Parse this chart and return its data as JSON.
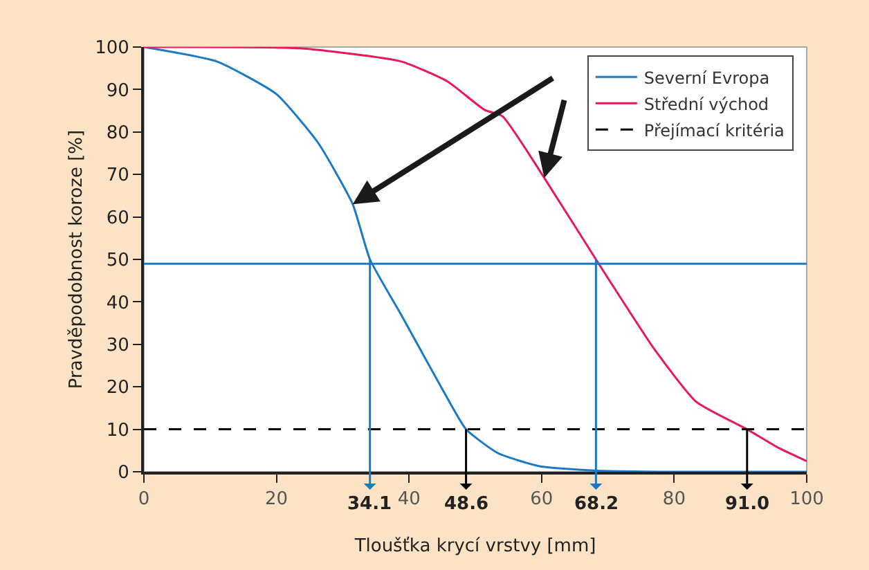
{
  "chart_data": {
    "type": "line",
    "xlabel": "Tloušťka krycí vrstvy [mm]",
    "ylabel": "Pravděpodobnost koroze [%]",
    "xlim": [
      0,
      100
    ],
    "xticks": [
      0,
      20,
      40,
      60,
      80,
      100
    ],
    "ylim": [
      0,
      100
    ],
    "yticks": [
      0,
      10,
      20,
      30,
      40,
      50,
      60,
      70,
      80,
      90,
      100
    ],
    "grid": false,
    "legend": "top right",
    "marker": "none",
    "series": [
      {
        "name": "Severní Evropa",
        "color": "#1a7ac8",
        "line_style": "solid",
        "x": [
          0,
          11,
          20,
          26.3,
          31.5,
          34.1,
          38.8,
          45,
          48.6,
          53.4,
          59.7,
          68,
          80,
          100
        ],
        "values": [
          100,
          96.6,
          88.9,
          77.4,
          63,
          50,
          37,
          19.5,
          10,
          4.4,
          1.3,
          0.3,
          0,
          0
        ]
      },
      {
        "name": "Střední východ",
        "color": "#e8185a",
        "line_style": "solid",
        "x": [
          0,
          23.5,
          38.8,
          45.8,
          51.4,
          54.1,
          60.4,
          68.2,
          77,
          83.3,
          91,
          95.8,
          100
        ],
        "values": [
          100,
          99.7,
          96.6,
          91.9,
          85.2,
          83.7,
          69.2,
          50,
          28.9,
          16.5,
          10,
          5.6,
          2.5
        ]
      },
      {
        "name": "Přejímací kritéria",
        "color": "#000000",
        "line_style": "dashed",
        "x": [
          0,
          100
        ],
        "values": [
          10,
          10
        ]
      }
    ],
    "ref_lines": [
      {
        "axis": "y",
        "value": 49,
        "color": "#1a7ac8"
      }
    ],
    "annotations": [
      {
        "text": "34.1",
        "x": 34.1,
        "y": 50
      },
      {
        "text": "48.6",
        "x": 48.6,
        "y": 10
      },
      {
        "text": "68.2",
        "x": 68.2,
        "y": 50
      },
      {
        "text": "91.0",
        "x": 91.0,
        "y": 10
      }
    ]
  }
}
